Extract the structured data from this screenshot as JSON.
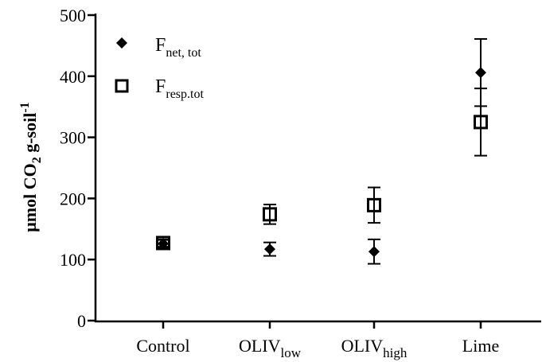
{
  "chart_data": {
    "type": "scatter",
    "xlabel": "",
    "ylabel": {
      "parts": [
        {
          "text": "μmol CO",
          "style": "normal"
        },
        {
          "text": "2",
          "style": "sub"
        },
        {
          "text": " g-soil",
          "style": "normal"
        },
        {
          "text": "-1",
          "style": "sup"
        }
      ]
    },
    "ylim": [
      0,
      500
    ],
    "yticks": [
      "0",
      "100",
      "200",
      "300",
      "400",
      "500"
    ],
    "categories": [
      {
        "main": "Control",
        "sub": ""
      },
      {
        "main": "OLIV",
        "sub": "low"
      },
      {
        "main": "OLIV",
        "sub": "high"
      },
      {
        "main": "Lime",
        "sub": ""
      }
    ],
    "series": [
      {
        "name": {
          "main": "F",
          "sub": "net, tot"
        },
        "marker": "filled-diamond",
        "color": "#000000",
        "values": [
          126,
          117,
          113,
          406
        ],
        "errors": [
          6,
          11,
          20,
          55
        ]
      },
      {
        "name": {
          "main": "F",
          "sub": "resp.tot"
        },
        "marker": "open-square",
        "color": "#000000",
        "values": [
          127,
          174,
          189,
          325
        ],
        "errors": [
          6,
          16,
          29,
          55
        ]
      }
    ],
    "legend": "top-left",
    "grid": false
  }
}
